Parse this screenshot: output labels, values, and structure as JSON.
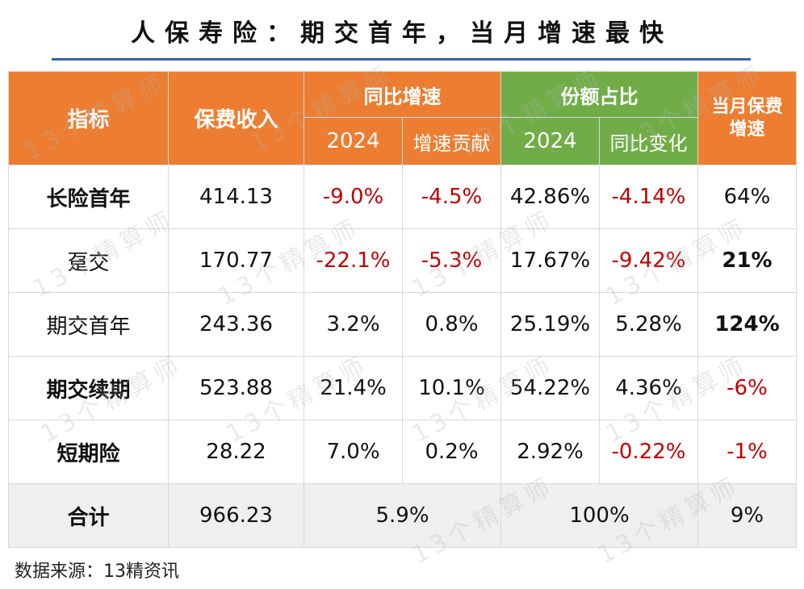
{
  "title": "人保寿险：期交首年，当月增速最快",
  "header": {
    "indicator": "指标",
    "premium_income": "保费收入",
    "yoy_growth": "同比增速",
    "share": "份额占比",
    "month_growth_line1": "当月保费",
    "month_growth_line2": "增速",
    "year_a": "2024",
    "growth_contribution": "增速贡献",
    "year_b": "2024",
    "yoy_change": "同比变化"
  },
  "rows": [
    {
      "name": "长险首年",
      "income": "414.13",
      "growth": "-9.0%",
      "contribution": "-4.5%",
      "share": "42.86%",
      "share_change": "-4.14%",
      "month_growth": "64%"
    },
    {
      "name": "趸交",
      "income": "170.77",
      "growth": "-22.1%",
      "contribution": "-5.3%",
      "share": "17.67%",
      "share_change": "-9.42%",
      "month_growth": "21%"
    },
    {
      "name": "期交首年",
      "income": "243.36",
      "growth": "3.2%",
      "contribution": "0.8%",
      "share": "25.19%",
      "share_change": "5.28%",
      "month_growth": "124%"
    },
    {
      "name": "期交续期",
      "income": "523.88",
      "growth": "21.4%",
      "contribution": "10.1%",
      "share": "54.22%",
      "share_change": "4.36%",
      "month_growth": "-6%"
    },
    {
      "name": "短期险",
      "income": "28.22",
      "growth": "7.0%",
      "contribution": "0.2%",
      "share": "2.92%",
      "share_change": "-0.22%",
      "month_growth": "-1%"
    }
  ],
  "total": {
    "name": "合计",
    "income": "966.23",
    "growth": "5.9%",
    "share": "100%",
    "month_growth": "9%"
  },
  "source": "数据来源：13精资讯",
  "watermark": "13个精算师",
  "colors": {
    "header_orange": "#ed7d31",
    "header_green": "#70ad47",
    "negative": "#c00000",
    "title_rule": "#3a64a6",
    "total_bg": "#efefef"
  }
}
